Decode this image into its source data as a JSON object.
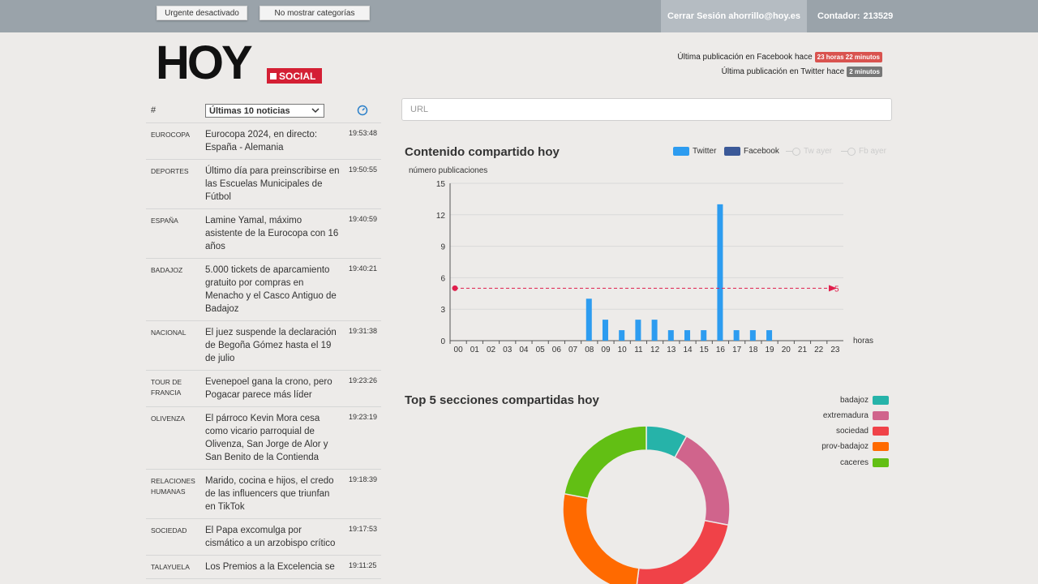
{
  "topbar": {
    "urgent_label": "Urgente desactivado",
    "categories_label": "No mostrar categorías",
    "logout_label": "Cerrar Sesión ahorrillo@hoy.es",
    "counter_label": "Contador:",
    "counter_value": "213529"
  },
  "logo": {
    "main": "HOY",
    "sub": "SOCIAL"
  },
  "last_publication": {
    "facebook_label": "Última publicación en Facebook hace",
    "facebook_value": "23 horas 22 minutos",
    "twitter_label": "Última publicación en Twitter hace",
    "twitter_value": "2 minutos"
  },
  "news": {
    "hash_label": "#",
    "select_value": "Últimas 10 noticias",
    "rows": [
      {
        "category": "EUROCOPA",
        "title": "Eurocopa 2024, en directo: España - Alemania",
        "time": "19:53:48"
      },
      {
        "category": "DEPORTES",
        "title": "Último día para preinscribirse en las Escuelas Municipales de Fútbol",
        "time": "19:50:55"
      },
      {
        "category": "ESPAÑA",
        "title": "Lamine Yamal, máximo asistente de la Eurocopa con 16 años",
        "time": "19:40:59"
      },
      {
        "category": "BADAJOZ",
        "title": "5.000 tickets de aparcamiento gratuito por compras en Menacho y el Casco Antiguo de Badajoz",
        "time": "19:40:21"
      },
      {
        "category": "NACIONAL",
        "title": "El juez suspende la declaración de Begoña Gómez hasta el 19 de julio",
        "time": "19:31:38"
      },
      {
        "category": "TOUR DE FRANCIA",
        "title": "Evenepoel gana la crono, pero Pogacar parece más líder",
        "time": "19:23:26"
      },
      {
        "category": "OLIVENZA",
        "title": "El párroco Kevin Mora cesa como vicario parroquial de Olivenza, San Jorge de Alor y San Benito de la Contienda",
        "time": "19:23:19"
      },
      {
        "category": "RELACIONES HUMANAS",
        "title": "Marido, cocina e hijos, el credo de las influencers que triunfan en TikTok",
        "time": "19:18:39"
      },
      {
        "category": "SOCIEDAD",
        "title": "El Papa excomulga por cismático a un arzobispo crítico",
        "time": "19:17:53"
      },
      {
        "category": "TALAYUELA",
        "title": "Los Premios a la Excelencia se",
        "time": "19:11:25"
      }
    ]
  },
  "url_input": {
    "placeholder": "URL",
    "value": ""
  },
  "colors": {
    "twitter": "#2d9cf0",
    "facebook": "#3b5998",
    "markline": "#e01f4c",
    "badajoz": "#26b3a9",
    "extremadura": "#d0648c",
    "sociedad": "#f04248",
    "prov-badajoz": "#ff6a00",
    "caceres": "#62bf14"
  },
  "chart_data": [
    {
      "type": "bar",
      "title": "Contenido compartido hoy",
      "ylabel": "número publicaciones",
      "xlabel": "horas",
      "ylim": [
        0,
        15
      ],
      "yticks": [
        0,
        3,
        6,
        9,
        12,
        15
      ],
      "categories": [
        "00",
        "01",
        "02",
        "03",
        "04",
        "05",
        "06",
        "07",
        "08",
        "09",
        "10",
        "11",
        "12",
        "13",
        "14",
        "15",
        "16",
        "17",
        "18",
        "19",
        "20",
        "21",
        "22",
        "23"
      ],
      "series": [
        {
          "name": "Twitter",
          "values": [
            0,
            0,
            0,
            0,
            0,
            0,
            0,
            0,
            4,
            2,
            1,
            2,
            2,
            1,
            1,
            1,
            13,
            1,
            1,
            1,
            0,
            0,
            0,
            0
          ]
        },
        {
          "name": "Facebook",
          "values": [
            0,
            0,
            0,
            0,
            0,
            0,
            0,
            0,
            0,
            0,
            0,
            0,
            0,
            0,
            0,
            0,
            0,
            0,
            0,
            0,
            0,
            0,
            0,
            0
          ]
        }
      ],
      "legend": [
        "Twitter",
        "Facebook",
        "Tw ayer",
        "Fb ayer"
      ],
      "markline": {
        "value": 5,
        "label": "5"
      },
      "grid": true,
      "legend_position": "top-right"
    },
    {
      "type": "pie",
      "title": "Top 5 secciones compartidas hoy",
      "labels": [
        "badajoz",
        "extremadura",
        "sociedad",
        "prov-badajoz",
        "caceres"
      ],
      "values": [
        8,
        20,
        24,
        26,
        22
      ],
      "legend_position": "right"
    }
  ]
}
